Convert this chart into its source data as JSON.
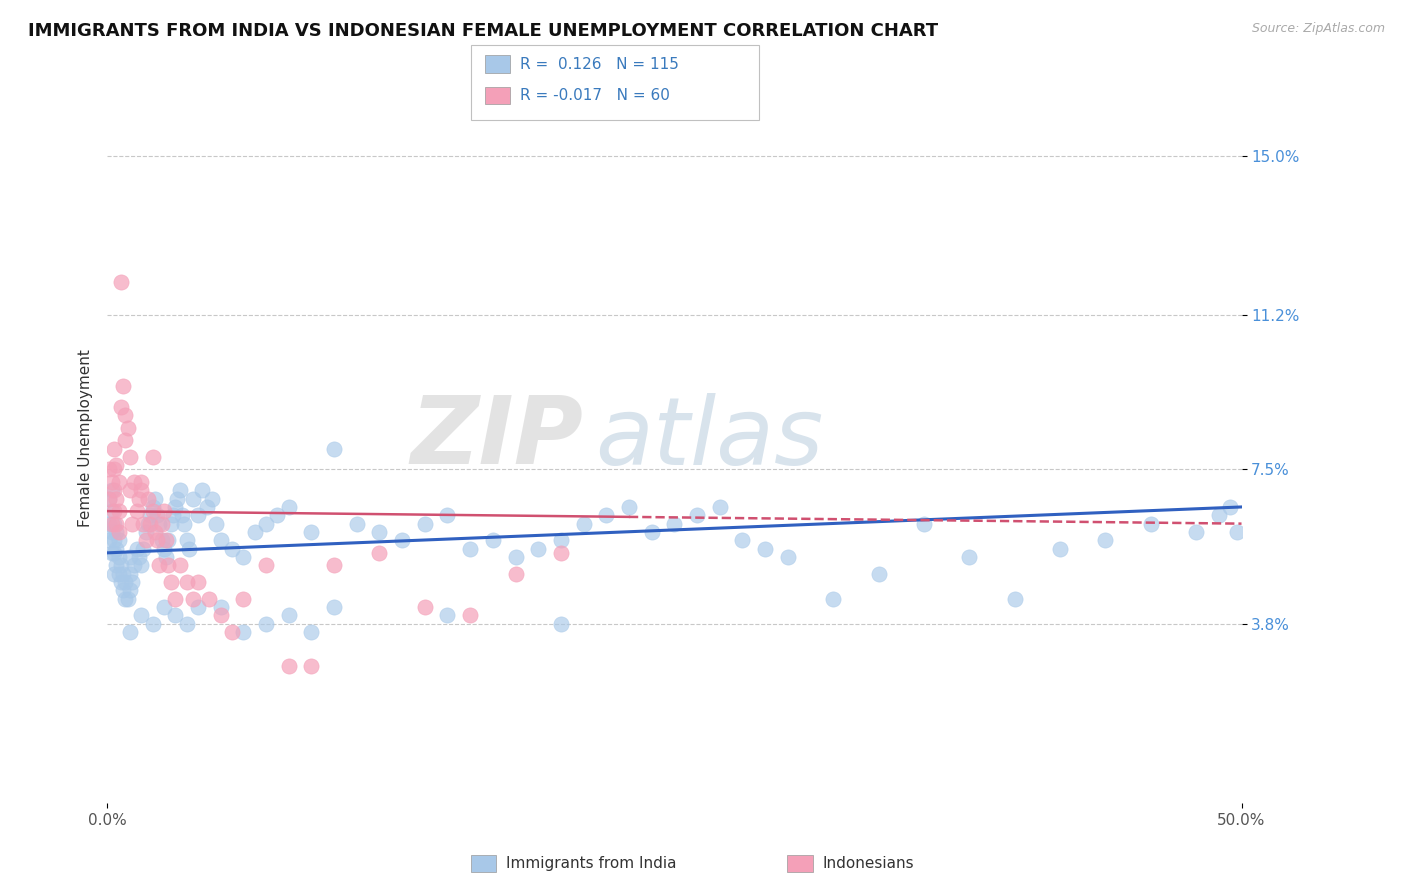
{
  "title": "IMMIGRANTS FROM INDIA VS INDONESIAN FEMALE UNEMPLOYMENT CORRELATION CHART",
  "source": "Source: ZipAtlas.com",
  "ylabel": "Female Unemployment",
  "r_india": 0.126,
  "n_india": 115,
  "r_indonesian": -0.017,
  "n_indonesian": 60,
  "color_india": "#a8c8e8",
  "color_indonesian": "#f4a0b8",
  "color_trendline_india": "#3060c0",
  "color_trendline_indonesian": "#d05070",
  "xlim": [
    0,
    0.5
  ],
  "ylim": [
    -0.005,
    0.17
  ],
  "yticks": [
    0.038,
    0.075,
    0.112,
    0.15
  ],
  "ytick_labels": [
    "3.8%",
    "7.5%",
    "11.2%",
    "15.0%"
  ],
  "xtick_labels": [
    "0.0%",
    "50.0%"
  ],
  "title_fontsize": 13,
  "axis_label_fontsize": 11,
  "tick_fontsize": 11,
  "background_color": "#ffffff",
  "grid_color": "#c8c8c8",
  "watermark_zip": "ZIP",
  "watermark_atlas": "atlas",
  "india_scatter_x": [
    0.001,
    0.001,
    0.001,
    0.002,
    0.002,
    0.002,
    0.002,
    0.003,
    0.003,
    0.003,
    0.003,
    0.004,
    0.004,
    0.004,
    0.005,
    0.005,
    0.005,
    0.006,
    0.006,
    0.007,
    0.007,
    0.008,
    0.008,
    0.009,
    0.01,
    0.01,
    0.01,
    0.011,
    0.012,
    0.013,
    0.014,
    0.015,
    0.016,
    0.017,
    0.018,
    0.019,
    0.02,
    0.021,
    0.022,
    0.023,
    0.024,
    0.025,
    0.026,
    0.027,
    0.028,
    0.029,
    0.03,
    0.031,
    0.032,
    0.033,
    0.034,
    0.035,
    0.036,
    0.038,
    0.04,
    0.042,
    0.044,
    0.046,
    0.048,
    0.05,
    0.055,
    0.06,
    0.065,
    0.07,
    0.075,
    0.08,
    0.09,
    0.1,
    0.11,
    0.12,
    0.13,
    0.14,
    0.15,
    0.16,
    0.17,
    0.18,
    0.19,
    0.2,
    0.21,
    0.22,
    0.23,
    0.24,
    0.25,
    0.26,
    0.27,
    0.28,
    0.29,
    0.3,
    0.32,
    0.34,
    0.36,
    0.38,
    0.4,
    0.42,
    0.44,
    0.46,
    0.48,
    0.49,
    0.495,
    0.498,
    0.01,
    0.015,
    0.02,
    0.025,
    0.03,
    0.035,
    0.04,
    0.05,
    0.06,
    0.07,
    0.08,
    0.09,
    0.1,
    0.15,
    0.2
  ],
  "india_scatter_y": [
    0.058,
    0.062,
    0.068,
    0.055,
    0.06,
    0.065,
    0.07,
    0.055,
    0.058,
    0.062,
    0.05,
    0.052,
    0.056,
    0.06,
    0.05,
    0.054,
    0.058,
    0.048,
    0.052,
    0.046,
    0.05,
    0.044,
    0.048,
    0.044,
    0.046,
    0.05,
    0.054,
    0.048,
    0.052,
    0.056,
    0.054,
    0.052,
    0.056,
    0.06,
    0.062,
    0.064,
    0.066,
    0.068,
    0.064,
    0.062,
    0.058,
    0.056,
    0.054,
    0.058,
    0.062,
    0.064,
    0.066,
    0.068,
    0.07,
    0.064,
    0.062,
    0.058,
    0.056,
    0.068,
    0.064,
    0.07,
    0.066,
    0.068,
    0.062,
    0.058,
    0.056,
    0.054,
    0.06,
    0.062,
    0.064,
    0.066,
    0.06,
    0.08,
    0.062,
    0.06,
    0.058,
    0.062,
    0.064,
    0.056,
    0.058,
    0.054,
    0.056,
    0.058,
    0.062,
    0.064,
    0.066,
    0.06,
    0.062,
    0.064,
    0.066,
    0.058,
    0.056,
    0.054,
    0.044,
    0.05,
    0.062,
    0.054,
    0.044,
    0.056,
    0.058,
    0.062,
    0.06,
    0.064,
    0.066,
    0.06,
    0.036,
    0.04,
    0.038,
    0.042,
    0.04,
    0.038,
    0.042,
    0.042,
    0.036,
    0.038,
    0.04,
    0.036,
    0.042,
    0.04,
    0.038
  ],
  "indonesian_scatter_x": [
    0.001,
    0.001,
    0.002,
    0.002,
    0.003,
    0.003,
    0.003,
    0.004,
    0.004,
    0.005,
    0.005,
    0.006,
    0.006,
    0.007,
    0.008,
    0.009,
    0.01,
    0.011,
    0.012,
    0.013,
    0.014,
    0.015,
    0.016,
    0.017,
    0.018,
    0.019,
    0.02,
    0.021,
    0.022,
    0.023,
    0.024,
    0.025,
    0.026,
    0.027,
    0.028,
    0.03,
    0.032,
    0.035,
    0.038,
    0.04,
    0.045,
    0.05,
    0.055,
    0.06,
    0.07,
    0.08,
    0.09,
    0.1,
    0.12,
    0.14,
    0.16,
    0.18,
    0.2,
    0.003,
    0.004,
    0.005,
    0.008,
    0.01,
    0.015,
    0.02
  ],
  "indonesian_scatter_y": [
    0.068,
    0.075,
    0.062,
    0.072,
    0.065,
    0.07,
    0.075,
    0.062,
    0.068,
    0.06,
    0.065,
    0.12,
    0.09,
    0.095,
    0.088,
    0.085,
    0.07,
    0.062,
    0.072,
    0.065,
    0.068,
    0.07,
    0.062,
    0.058,
    0.068,
    0.062,
    0.065,
    0.06,
    0.058,
    0.052,
    0.062,
    0.065,
    0.058,
    0.052,
    0.048,
    0.044,
    0.052,
    0.048,
    0.044,
    0.048,
    0.044,
    0.04,
    0.036,
    0.044,
    0.052,
    0.028,
    0.028,
    0.052,
    0.055,
    0.042,
    0.04,
    0.05,
    0.055,
    0.08,
    0.076,
    0.072,
    0.082,
    0.078,
    0.072,
    0.078
  ]
}
